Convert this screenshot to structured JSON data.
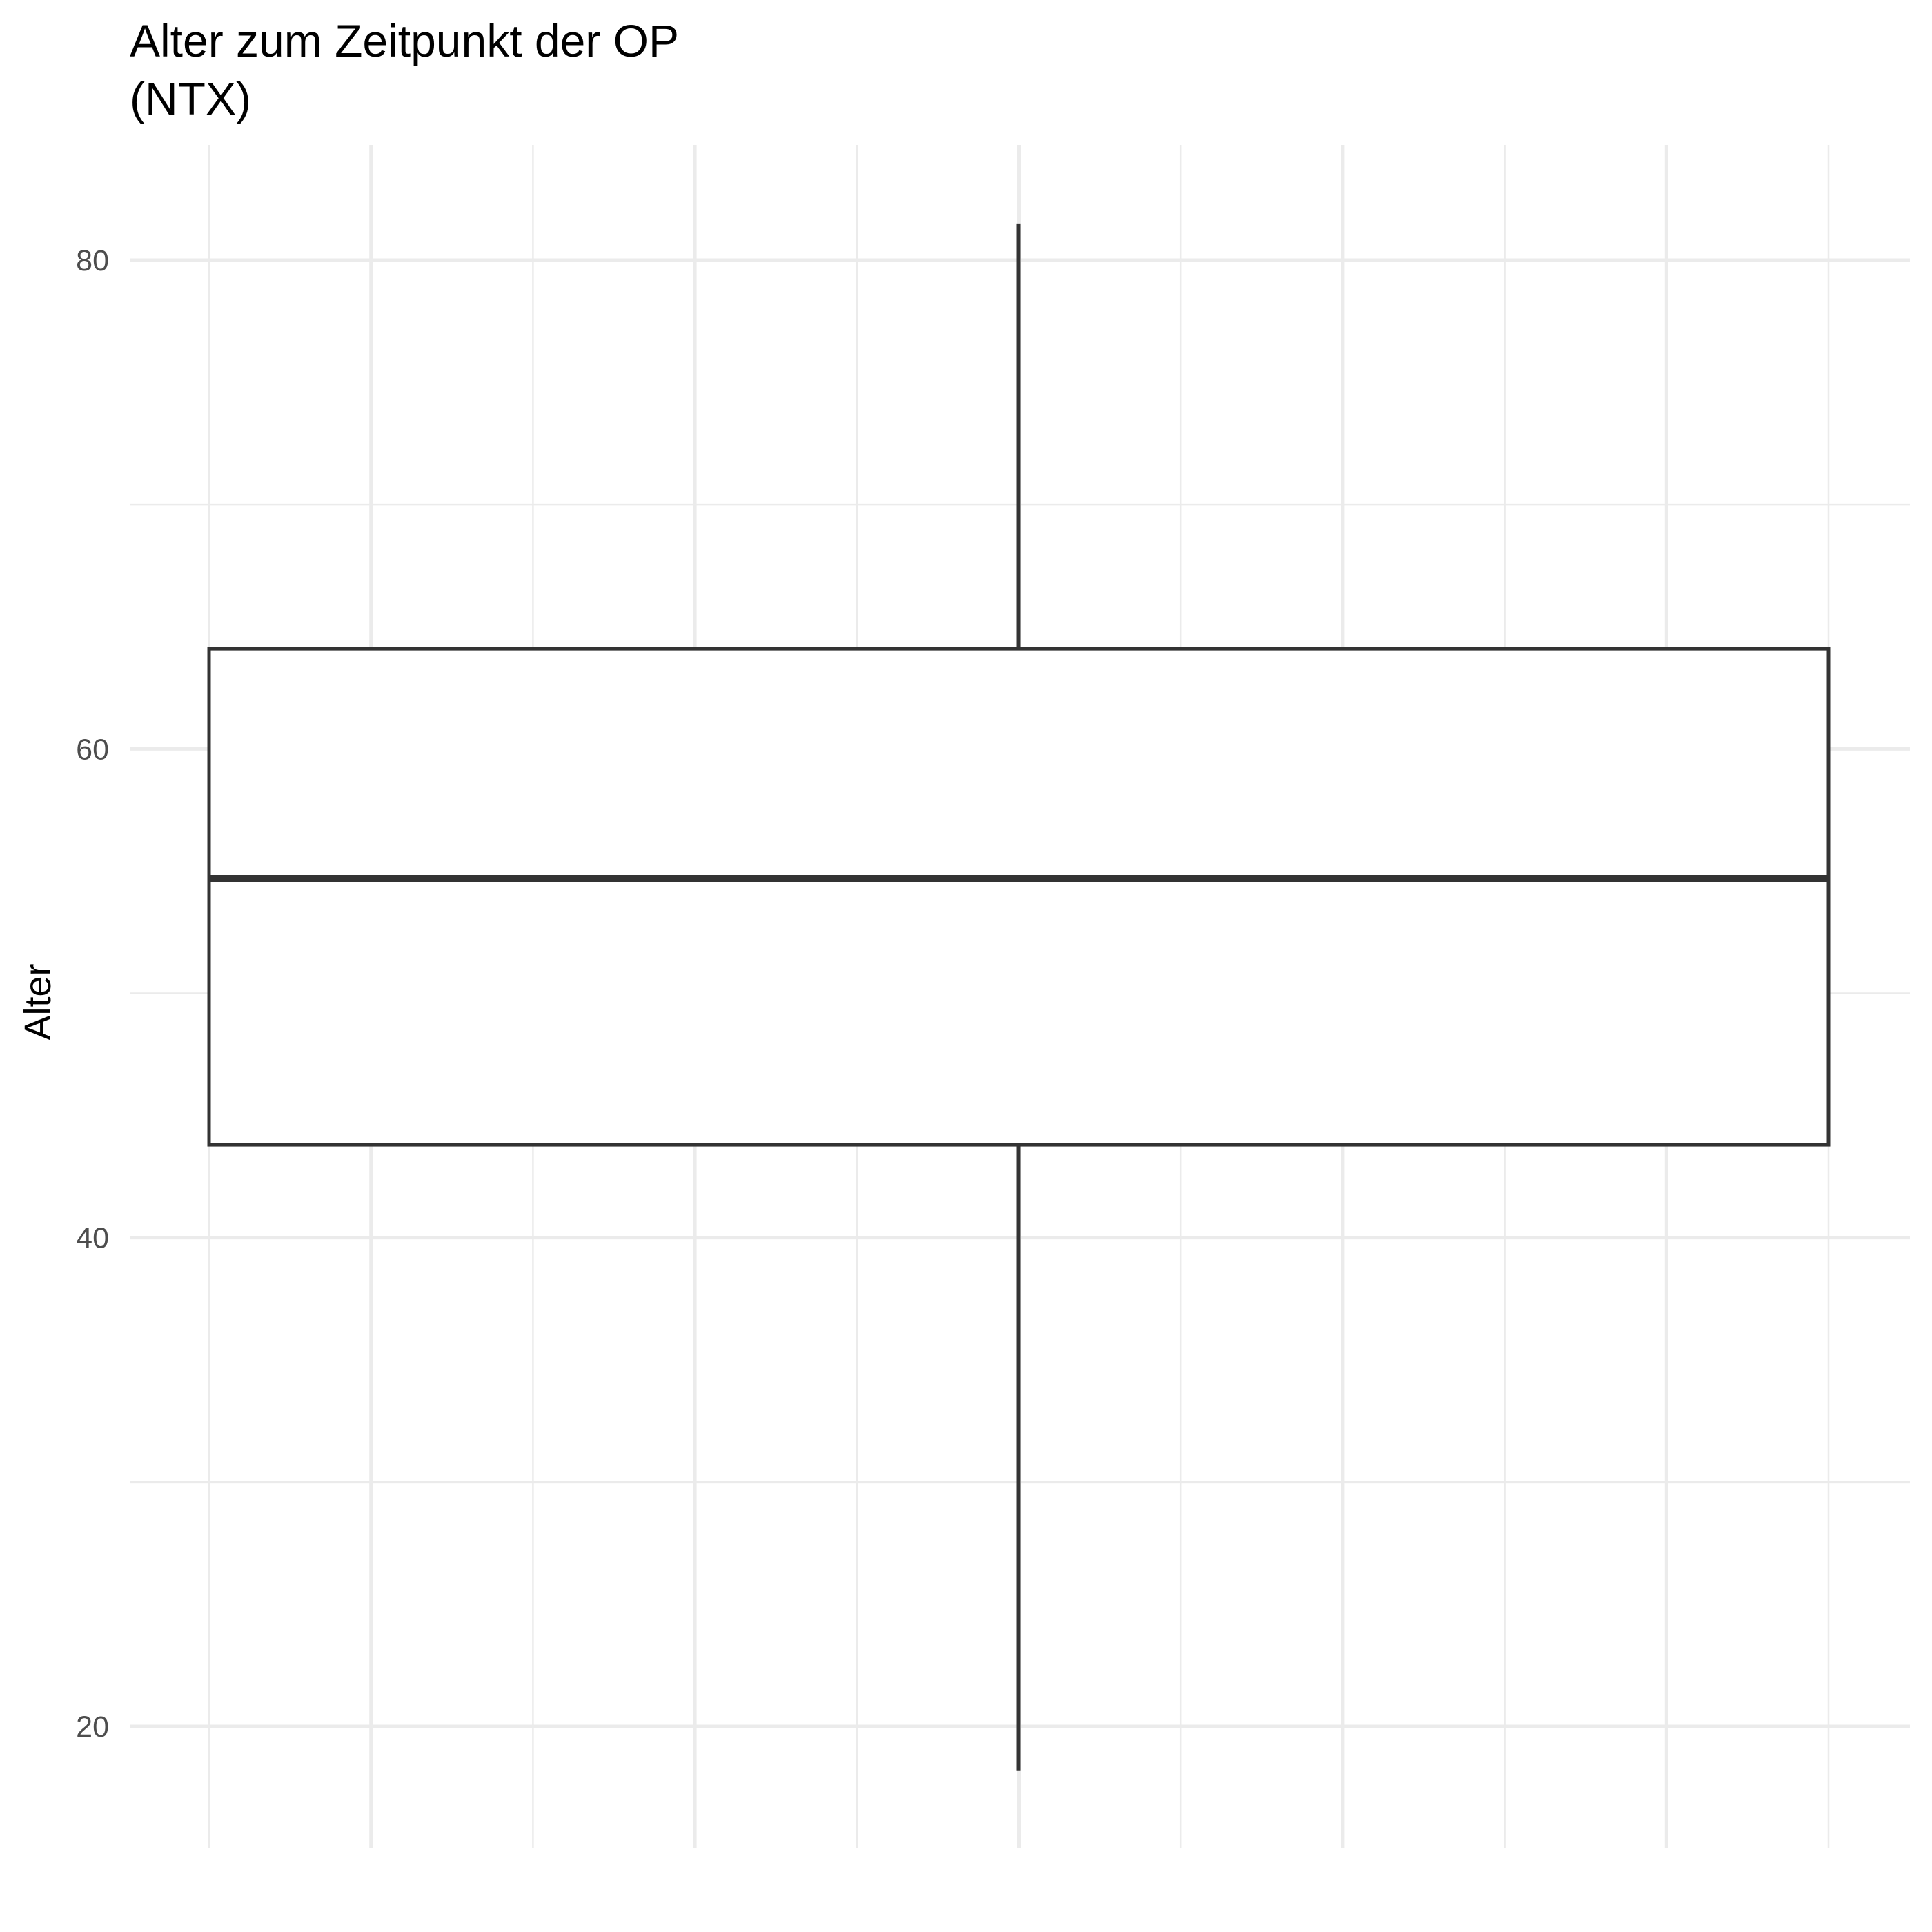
{
  "chart_data": {
    "type": "box",
    "title": "Alter zum Zeitpunkt der OP",
    "subtitle": "(NTX)",
    "ylabel": "Alter",
    "xlabel": "",
    "ylim": [
      15,
      85
    ],
    "yticks": [
      20,
      40,
      60,
      80
    ],
    "grid": true,
    "box": {
      "whisker_low": 18.2,
      "q1": 43.8,
      "median": 54.7,
      "q3": 64.1,
      "whisker_high": 81.5
    }
  }
}
